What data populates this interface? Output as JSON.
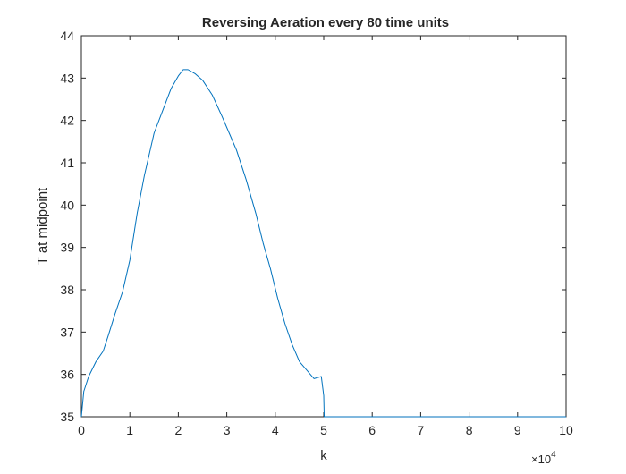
{
  "chart_data": {
    "type": "line",
    "title": "Reversing Aeration every 80 time units",
    "xlabel": "k",
    "ylabel": "T at midpoint",
    "x_multiplier_base": "×10",
    "x_multiplier_exp": "4",
    "xlim": [
      0,
      10
    ],
    "ylim": [
      35,
      44
    ],
    "x_ticks": [
      0,
      1,
      2,
      3,
      4,
      5,
      6,
      7,
      8,
      9,
      10
    ],
    "y_ticks": [
      35,
      36,
      37,
      38,
      39,
      40,
      41,
      42,
      43,
      44
    ],
    "grid": false,
    "series": [
      {
        "color": "#0072bd",
        "x": [
          0,
          0.05,
          0.15,
          0.3,
          0.45,
          0.55,
          0.7,
          0.85,
          1.0,
          1.15,
          1.3,
          1.5,
          1.7,
          1.85,
          2.0,
          2.1,
          2.2,
          2.35,
          2.5,
          2.7,
          2.9,
          3.05,
          3.2,
          3.4,
          3.6,
          3.75,
          3.9,
          4.05,
          4.2,
          4.35,
          4.5,
          4.65,
          4.8,
          4.95,
          5.0,
          5.01,
          6,
          7,
          8,
          9,
          10
        ],
        "y": [
          35.0,
          35.6,
          35.95,
          36.3,
          36.55,
          36.9,
          37.45,
          37.95,
          38.7,
          39.8,
          40.7,
          41.7,
          42.3,
          42.75,
          43.05,
          43.2,
          43.2,
          43.1,
          42.95,
          42.6,
          42.1,
          41.7,
          41.3,
          40.6,
          39.8,
          39.1,
          38.5,
          37.8,
          37.2,
          36.7,
          36.3,
          36.1,
          35.9,
          35.95,
          35.5,
          35.0,
          35.0,
          35.0,
          35.0,
          35.0,
          35.0
        ]
      }
    ]
  }
}
